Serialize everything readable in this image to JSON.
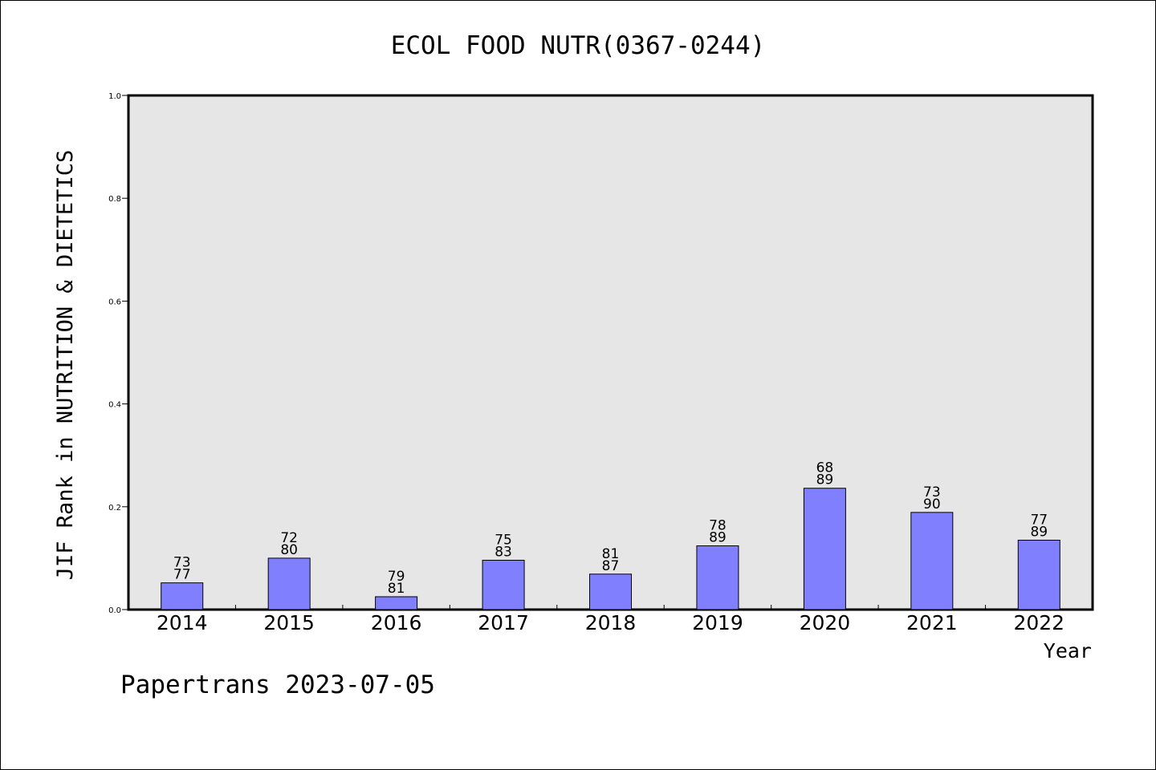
{
  "chart_data": {
    "type": "bar",
    "title": "ECOL FOOD NUTR(0367-0244)",
    "ylabel": "JIF Rank in NUTRITION & DIETETICS",
    "xlabel": "Year",
    "ylim": [
      0,
      1.0
    ],
    "yticks": [
      "0.0",
      "0.2",
      "0.4",
      "0.6",
      "0.8",
      "1.0"
    ],
    "categories": [
      "2014",
      "2015",
      "2016",
      "2017",
      "2018",
      "2019",
      "2020",
      "2021",
      "2022"
    ],
    "values": [
      0.052,
      0.1,
      0.025,
      0.096,
      0.069,
      0.124,
      0.236,
      0.189,
      0.135
    ],
    "bar_labels": [
      {
        "rank": "73",
        "total": "77"
      },
      {
        "rank": "72",
        "total": "80"
      },
      {
        "rank": "79",
        "total": "81"
      },
      {
        "rank": "75",
        "total": "83"
      },
      {
        "rank": "81",
        "total": "87"
      },
      {
        "rank": "78",
        "total": "89"
      },
      {
        "rank": "68",
        "total": "89"
      },
      {
        "rank": "73",
        "total": "90"
      },
      {
        "rank": "77",
        "total": "89"
      }
    ],
    "grid": false,
    "colors": {
      "bar": "#8080ff",
      "plot_background": "#e6e6e6"
    }
  },
  "footer": "Papertrans 2023-07-05"
}
